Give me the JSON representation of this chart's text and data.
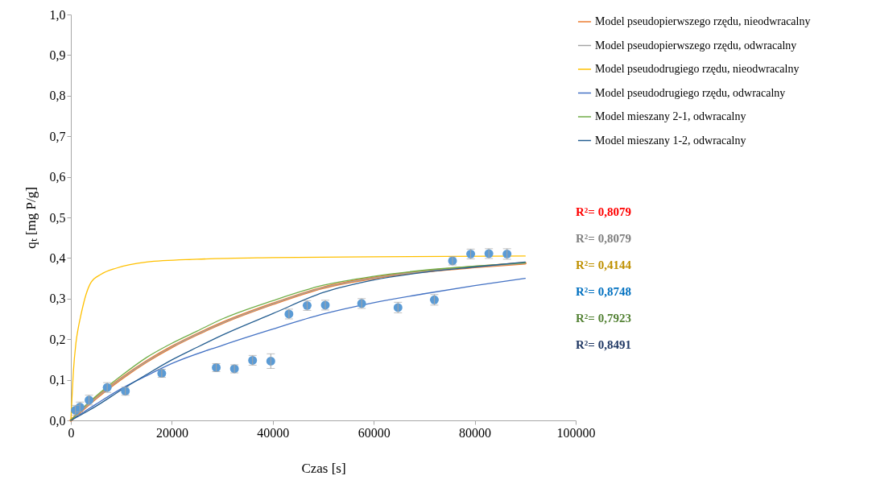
{
  "chart_data": {
    "type": "line",
    "xlabel": "Czas [s]",
    "ylabel": "qₜ [mg P/g]",
    "xlim": [
      0,
      100000
    ],
    "xticks": [
      0,
      20000,
      40000,
      60000,
      80000,
      100000
    ],
    "ylim": [
      0,
      1
    ],
    "yticks": [
      {
        "value": 0,
        "label": "0,0"
      },
      {
        "value": 0.1,
        "label": "0,1"
      },
      {
        "value": 0.2,
        "label": "0,2"
      },
      {
        "value": 0.3,
        "label": "0,3"
      },
      {
        "value": 0.4,
        "label": "0,4"
      },
      {
        "value": 0.5,
        "label": "0,5"
      },
      {
        "value": 0.6,
        "label": "0,6"
      },
      {
        "value": 0.7,
        "label": "0,7"
      },
      {
        "value": 0.8,
        "label": "0,8"
      },
      {
        "value": 0.9,
        "label": "0,9"
      },
      {
        "value": 1,
        "label": "1,0"
      }
    ],
    "grid": false,
    "legend": "top right",
    "series": [
      {
        "name": "Model pseudopierwszego rzędu, nieodwracalny",
        "type": "line",
        "color": "#ed7d31",
        "x": [
          0,
          2500,
          5000,
          10000,
          15000,
          20000,
          25000,
          30000,
          40000,
          50000,
          60000,
          70000,
          80000,
          90000
        ],
        "values": [
          0,
          0.028,
          0.055,
          0.103,
          0.145,
          0.181,
          0.212,
          0.24,
          0.287,
          0.327,
          0.351,
          0.367,
          0.378,
          0.387
        ]
      },
      {
        "name": "Model pseudopierwszego rzędu, odwracalny",
        "type": "line",
        "color": "#a5a5a5",
        "x": [
          0,
          2500,
          5000,
          10000,
          15000,
          20000,
          25000,
          30000,
          40000,
          50000,
          60000,
          70000,
          80000,
          90000
        ],
        "values": [
          0,
          0.028,
          0.055,
          0.103,
          0.145,
          0.181,
          0.212,
          0.24,
          0.287,
          0.327,
          0.351,
          0.367,
          0.378,
          0.387
        ]
      },
      {
        "name": "Model pseudodrugiego rzędu, nieodwracalny",
        "type": "line",
        "color": "#ffc000",
        "x": [
          0,
          200,
          500,
          1000,
          1500,
          2000,
          3000,
          4000,
          6000,
          9000,
          15000,
          25000,
          40000,
          60000,
          90000
        ],
        "values": [
          0,
          0.05,
          0.12,
          0.19,
          0.23,
          0.26,
          0.31,
          0.34,
          0.36,
          0.375,
          0.39,
          0.397,
          0.401,
          0.403,
          0.405
        ]
      },
      {
        "name": "Model pseudodrugiego rzędu, odwracalny",
        "type": "line",
        "color": "#4472c4",
        "x": [
          0,
          5000,
          10000,
          15000,
          20000,
          30000,
          40000,
          50000,
          60000,
          70000,
          80000,
          90000
        ],
        "values": [
          0,
          0.04,
          0.078,
          0.11,
          0.14,
          0.185,
          0.225,
          0.262,
          0.29,
          0.312,
          0.332,
          0.35
        ]
      },
      {
        "name": "Model mieszany 2-1, odwracalny",
        "type": "line",
        "color": "#70ad47",
        "x": [
          0,
          2500,
          5000,
          10000,
          15000,
          20000,
          25000,
          30000,
          40000,
          50000,
          60000,
          70000,
          80000,
          90000
        ],
        "values": [
          0,
          0.032,
          0.06,
          0.11,
          0.155,
          0.19,
          0.22,
          0.25,
          0.295,
          0.333,
          0.355,
          0.37,
          0.38,
          0.388
        ]
      },
      {
        "name": "Model mieszany 1-2, odwracalny",
        "type": "line",
        "color": "#255e91",
        "x": [
          0,
          5000,
          10000,
          15000,
          20000,
          25000,
          30000,
          40000,
          50000,
          60000,
          70000,
          80000,
          90000
        ],
        "values": [
          0,
          0.035,
          0.075,
          0.113,
          0.149,
          0.18,
          0.21,
          0.263,
          0.315,
          0.346,
          0.365,
          0.378,
          0.39
        ]
      },
      {
        "type": "scatter",
        "color": "#5b9bd5",
        "x": [
          900,
          1800,
          3600,
          7200,
          10800,
          18000,
          28800,
          32400,
          36000,
          39600,
          43200,
          46800,
          50400,
          57600,
          64800,
          72000,
          75600,
          79200,
          82800,
          86400
        ],
        "values": [
          0.025,
          0.033,
          0.05,
          0.081,
          0.072,
          0.116,
          0.13,
          0.127,
          0.148,
          0.146,
          0.262,
          0.283,
          0.284,
          0.288,
          0.278,
          0.297,
          0.393,
          0.41,
          0.411,
          0.41
        ],
        "errors": [
          0.012,
          0.012,
          0.012,
          0.012,
          0.01,
          0.01,
          0.01,
          0.01,
          0.012,
          0.018,
          0.012,
          0.012,
          0.012,
          0.012,
          0.013,
          0.013,
          0.01,
          0.012,
          0.012,
          0.013
        ]
      }
    ],
    "annotations": [
      "R²= 0,8079",
      "R²= 0,8079",
      "R²= 0,4144",
      "R²= 0,8748",
      "R²= 0,7923",
      "R²= 0,8491"
    ]
  }
}
